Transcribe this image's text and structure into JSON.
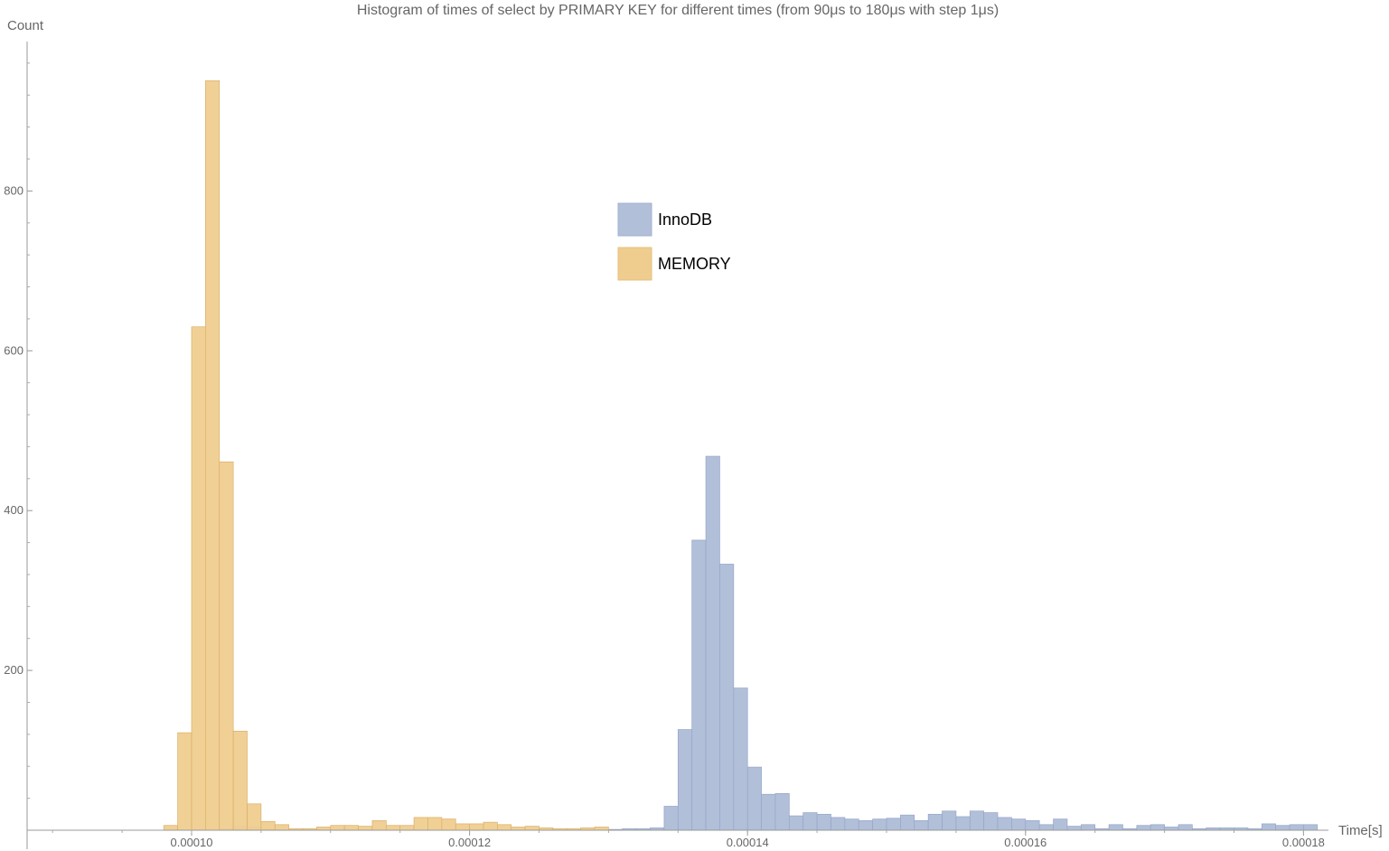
{
  "chart_data": {
    "type": "bar",
    "title": "Histogram of times of select by PRIMARY KEY for different times (from 90μs to 180μs with step 1μs)",
    "xlabel": "Time[s]",
    "ylabel": "Count",
    "xlim": [
      9e-05,
      0.000181
    ],
    "ylim": [
      0,
      1000
    ],
    "bin_width": 1e-06,
    "x_ticks": [
      "0.00010",
      "0.00012",
      "0.00014",
      "0.00016",
      "0.00018"
    ],
    "x_tick_values": [
      0.0001,
      0.00012,
      0.00014,
      0.00016,
      0.00018
    ],
    "y_ticks": [
      "200",
      "400",
      "600",
      "800"
    ],
    "y_tick_values": [
      200,
      400,
      600,
      800
    ],
    "legend": {
      "position": "top-center"
    },
    "series": [
      {
        "name": "InnoDB",
        "color": "#b1bfd9",
        "stroke": "#97a6c8",
        "bin_start": 0.0001,
        "values": [
          0,
          0,
          2,
          5,
          4,
          1,
          0,
          0,
          0,
          0,
          0,
          0,
          0,
          0,
          0,
          0,
          0,
          0,
          0,
          0,
          0,
          0,
          0,
          0,
          0,
          0,
          0,
          0,
          0,
          0,
          1,
          2,
          2,
          3,
          30,
          126,
          363,
          468,
          333,
          178,
          79,
          45,
          46,
          18,
          22,
          20,
          16,
          14,
          12,
          14,
          15,
          19,
          12,
          20,
          24,
          17,
          24,
          22,
          16,
          14,
          12,
          7,
          14,
          5,
          7,
          2,
          7,
          2,
          6,
          7,
          4,
          7,
          2,
          3,
          3,
          3,
          2,
          8,
          6,
          7,
          7
        ]
      },
      {
        "name": "MEMORY",
        "color": "#efcd8f",
        "stroke": "#dcb06a",
        "bin_start": 9.8e-05,
        "values": [
          6,
          122,
          630,
          938,
          461,
          124,
          33,
          11,
          7,
          2,
          2,
          4,
          6,
          6,
          5,
          12,
          6,
          6,
          16,
          16,
          14,
          8,
          8,
          10,
          7,
          4,
          5,
          3,
          2,
          2,
          3,
          4
        ]
      }
    ]
  }
}
